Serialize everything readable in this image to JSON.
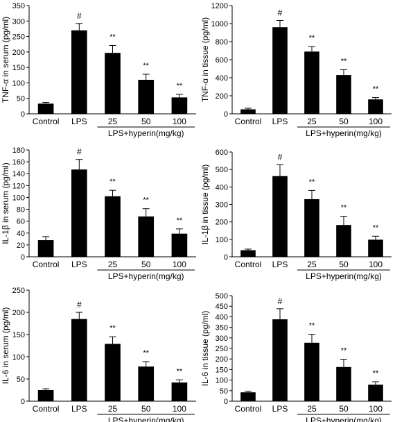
{
  "chart_data": [
    {
      "type": "bar",
      "ylabel": "TNF-α in serum (pg/ml)",
      "categories": [
        "Control",
        "LPS",
        "25",
        "50",
        "100"
      ],
      "group_label": "LPS+hyperin(mg/kg)",
      "values": [
        33,
        270,
        197,
        110,
        53
      ],
      "errors": [
        4,
        22,
        24,
        18,
        10
      ],
      "markers": [
        "",
        "#",
        "**",
        "**",
        "**"
      ],
      "ylim": [
        0,
        350
      ],
      "yticks": [
        0,
        50,
        100,
        150,
        200,
        250,
        300,
        350
      ]
    },
    {
      "type": "bar",
      "ylabel": "TNF-α in tissue (pg/ml)",
      "categories": [
        "Control",
        "LPS",
        "25",
        "50",
        "100"
      ],
      "group_label": "LPS+hyperin(mg/kg)",
      "values": [
        50,
        960,
        690,
        430,
        160
      ],
      "errors": [
        12,
        75,
        55,
        60,
        20
      ],
      "markers": [
        "",
        "#",
        "**",
        "**",
        "**"
      ],
      "ylim": [
        0,
        1200
      ],
      "yticks": [
        0,
        200,
        400,
        600,
        800,
        1000,
        1200
      ]
    },
    {
      "type": "bar",
      "ylabel": "IL-1β in serum (pg/ml)",
      "categories": [
        "Control",
        "LPS",
        "25",
        "50",
        "100"
      ],
      "group_label": "LPS+hyperin(mg/kg)",
      "values": [
        28,
        147,
        102,
        68,
        39
      ],
      "errors": [
        6,
        17,
        10,
        13,
        8
      ],
      "markers": [
        "",
        "#",
        "**",
        "**",
        "**"
      ],
      "ylim": [
        0,
        180
      ],
      "yticks": [
        0,
        20,
        40,
        60,
        80,
        100,
        120,
        140,
        160,
        180
      ]
    },
    {
      "type": "bar",
      "ylabel": "IL-1β in tissue (pg/ml)",
      "categories": [
        "Control",
        "LPS",
        "25",
        "50",
        "100"
      ],
      "group_label": "LPS+hyperin(mg/kg)",
      "values": [
        38,
        462,
        330,
        182,
        98
      ],
      "errors": [
        6,
        65,
        50,
        50,
        20
      ],
      "markers": [
        "",
        "#",
        "**",
        "**",
        "**"
      ],
      "ylim": [
        0,
        600
      ],
      "yticks": [
        0,
        100,
        200,
        300,
        400,
        500,
        600
      ]
    },
    {
      "type": "bar",
      "ylabel": "IL-6 in serum (pg/ml)",
      "categories": [
        "Control",
        "LPS",
        "25",
        "50",
        "100"
      ],
      "group_label": "LPS+hyperin(mg/kg)",
      "values": [
        25,
        185,
        129,
        78,
        42
      ],
      "errors": [
        3,
        15,
        16,
        11,
        6
      ],
      "markers": [
        "",
        "#",
        "**",
        "**",
        "**"
      ],
      "ylim": [
        0,
        250
      ],
      "yticks": [
        0,
        50,
        100,
        150,
        200,
        250
      ]
    },
    {
      "type": "bar",
      "ylabel": "IL-6 in tissue (pg/ml)",
      "categories": [
        "Control",
        "LPS",
        "25",
        "50",
        "100"
      ],
      "group_label": "LPS+hyperin(mg/kg)",
      "values": [
        42,
        388,
        277,
        162,
        78
      ],
      "errors": [
        5,
        50,
        40,
        37,
        14
      ],
      "markers": [
        "",
        "#",
        "**",
        "**",
        "**"
      ],
      "ylim": [
        0,
        500
      ],
      "yticks": [
        0,
        50,
        100,
        150,
        200,
        250,
        300,
        350,
        400,
        450,
        500
      ]
    }
  ]
}
